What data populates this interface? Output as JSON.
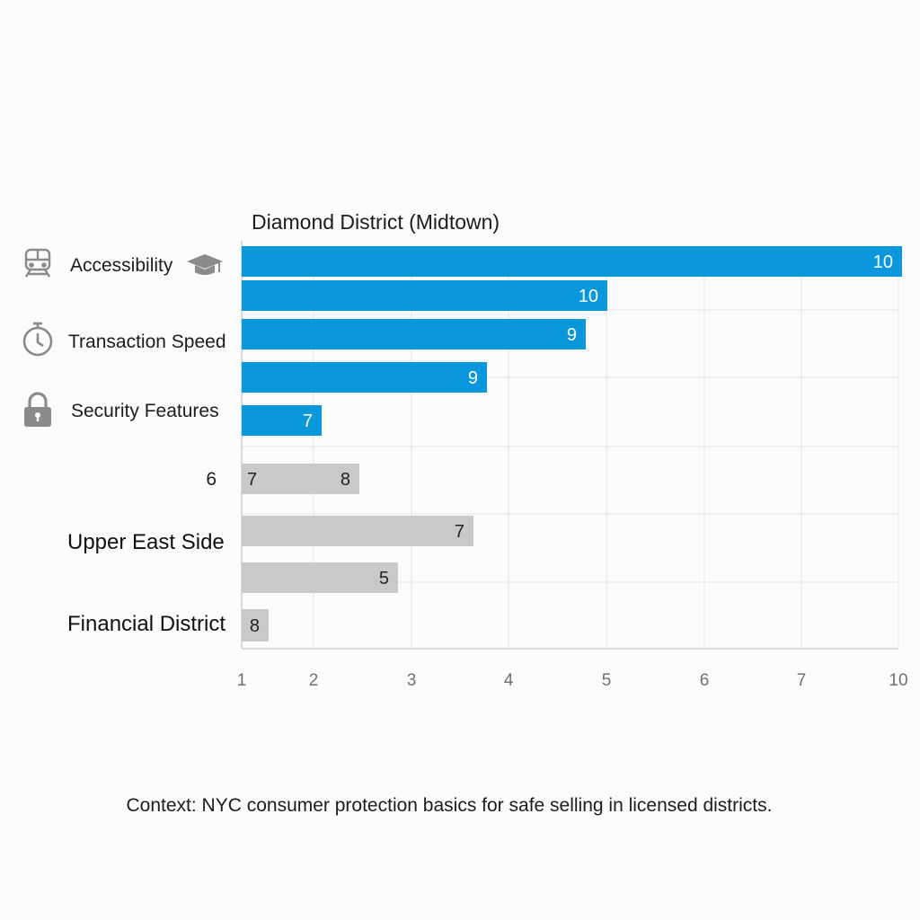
{
  "chart_data": {
    "type": "bar",
    "orientation": "horizontal",
    "title": "Diamond District (Midtown)",
    "x_tick_labels": [
      "1",
      "2",
      "3",
      "4",
      "5",
      "6",
      "7",
      "10"
    ],
    "xlim": [
      1,
      10
    ],
    "grid": true,
    "labels": [
      {
        "text": "Accessibility",
        "icon": "train-icon",
        "icon_right": "graduation-cap-icon",
        "style": "normal"
      },
      {
        "text": "Transaction Speed",
        "icon": "stopwatch-icon",
        "style": "normal"
      },
      {
        "text": "Security Features",
        "icon": "padlock-icon",
        "style": "normal"
      },
      {
        "text": "6",
        "style": "normal"
      },
      {
        "text": "Upper East Side",
        "style": "big"
      },
      {
        "text": "Financial District",
        "style": "big"
      }
    ],
    "bars": [
      {
        "value": 10,
        "label": "10",
        "group": "Diamond District (Midtown)",
        "color": "#0a97dc"
      },
      {
        "value": 10,
        "label": "10",
        "group": "Diamond District (Midtown)",
        "color": "#0a97dc"
      },
      {
        "value": 9,
        "label": "9",
        "group": "Diamond District (Midtown)",
        "color": "#0a97dc"
      },
      {
        "value": 9,
        "label": "9",
        "group": "Diamond District (Midtown)",
        "color": "#0a97dc"
      },
      {
        "value": 7,
        "label": "7",
        "group": "Diamond District (Midtown)",
        "color": "#0a97dc"
      },
      {
        "value": 8,
        "label": "8",
        "inner_label": "7",
        "group": "other",
        "color": "#c9c9cb"
      },
      {
        "value": 7,
        "label": "7",
        "group": "other",
        "color": "#c9c9cb"
      },
      {
        "value": 5,
        "label": "5",
        "group": "other",
        "color": "#c9c9cb"
      },
      {
        "value": 8,
        "label": "8",
        "group": "other",
        "color": "#c9c9cb"
      }
    ]
  },
  "footer": {
    "note": "Context: NYC consumer protection basics for safe selling in licensed districts."
  }
}
